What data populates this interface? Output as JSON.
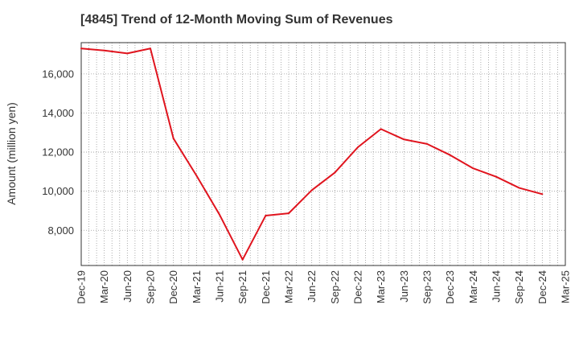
{
  "chart_data": {
    "type": "line",
    "title": "[4845]  Trend of 12-Month Moving Sum of Revenues",
    "xlabel": "",
    "ylabel": "Amount (million yen)",
    "x_ticks": [
      "Dec-19",
      "Mar-20",
      "Jun-20",
      "Sep-20",
      "Dec-20",
      "Mar-21",
      "Jun-21",
      "Sep-21",
      "Dec-21",
      "Mar-22",
      "Jun-22",
      "Sep-22",
      "Dec-22",
      "Mar-23",
      "Jun-23",
      "Sep-23",
      "Dec-23",
      "Mar-24",
      "Jun-24",
      "Sep-24",
      "Dec-24",
      "Mar-25"
    ],
    "y_ticks": [
      "8,000",
      "10,000",
      "12,000",
      "14,000",
      "16,000"
    ],
    "y_tick_values": [
      8000,
      10000,
      12000,
      14000,
      16000
    ],
    "ylim": [
      6200,
      17600
    ],
    "grid": true,
    "series_color": "#e0141e",
    "series": [
      {
        "x": [
          "Dec-19",
          "Mar-20",
          "Jun-20",
          "Sep-20",
          "Dec-20",
          "Mar-21",
          "Jun-21",
          "Sep-21",
          "Dec-21",
          "Mar-22",
          "Jun-22",
          "Sep-22",
          "Dec-22",
          "Mar-23",
          "Jun-23",
          "Sep-23",
          "Dec-23",
          "Mar-24",
          "Jun-24",
          "Sep-24",
          "Dec-24"
        ],
        "values": [
          17300,
          17200,
          17050,
          17300,
          12700,
          10800,
          8800,
          6500,
          8750,
          8870,
          10050,
          10950,
          12250,
          13180,
          12650,
          12420,
          11850,
          11170,
          10740,
          10170,
          9850
        ]
      }
    ]
  }
}
